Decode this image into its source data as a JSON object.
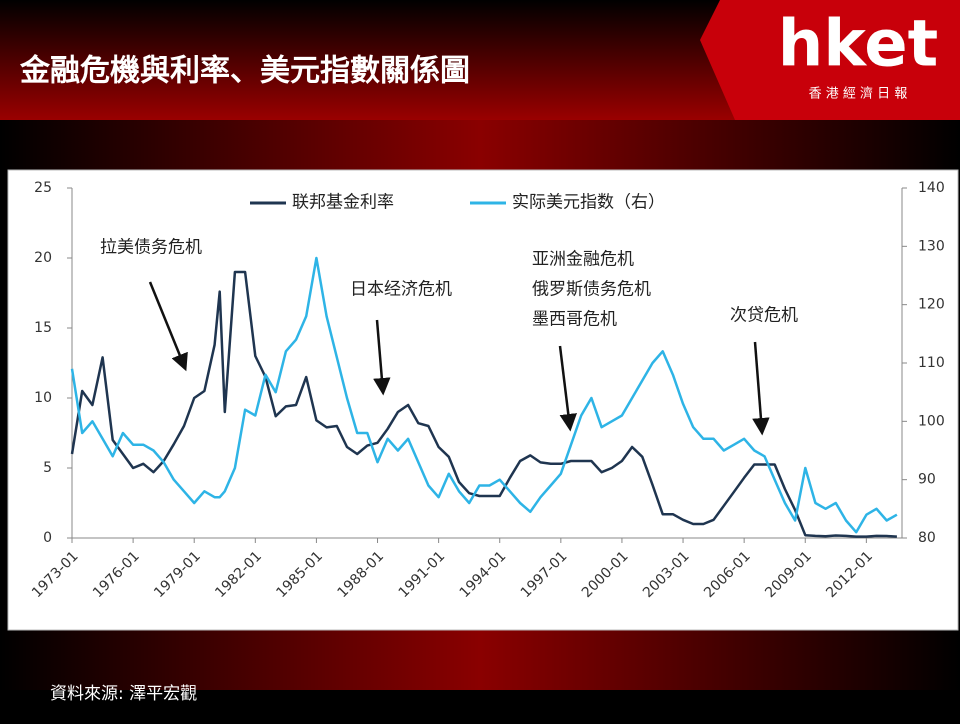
{
  "slide": {
    "title": "金融危機與利率、美元指數關係圖",
    "logo": "hket",
    "logo_sub": "香 港 經 濟 日 報",
    "source": "資料來源: 澤平宏觀"
  },
  "chart_data": {
    "type": "line",
    "annotations": [
      "拉美债务危机",
      "日本经济危机",
      "亚洲金融危机",
      "俄罗斯债务危机",
      "墨西哥危机",
      "次贷危机"
    ],
    "x": [
      "1973-01",
      "1973-07",
      "1974-01",
      "1974-07",
      "1975-01",
      "1975-07",
      "1976-01",
      "1976-07",
      "1977-01",
      "1977-07",
      "1978-01",
      "1978-07",
      "1979-01",
      "1979-07",
      "1980-01",
      "1980-04",
      "1980-07",
      "1981-01",
      "1981-07",
      "1982-01",
      "1982-07",
      "1983-01",
      "1983-07",
      "1984-01",
      "1984-07",
      "1985-01",
      "1985-07",
      "1986-01",
      "1986-07",
      "1987-01",
      "1987-07",
      "1988-01",
      "1988-07",
      "1989-01",
      "1989-07",
      "1990-01",
      "1990-07",
      "1991-01",
      "1991-07",
      "1992-01",
      "1992-07",
      "1993-01",
      "1993-07",
      "1994-01",
      "1994-07",
      "1995-01",
      "1995-07",
      "1996-01",
      "1996-07",
      "1997-01",
      "1997-07",
      "1998-01",
      "1998-07",
      "1999-01",
      "1999-07",
      "2000-01",
      "2000-07",
      "2001-01",
      "2001-07",
      "2002-01",
      "2002-07",
      "2003-01",
      "2003-07",
      "2004-01",
      "2004-07",
      "2005-01",
      "2005-07",
      "2006-01",
      "2006-07",
      "2007-01",
      "2007-07",
      "2008-01",
      "2008-07",
      "2009-01",
      "2009-07",
      "2010-01",
      "2010-07",
      "2011-01",
      "2011-07",
      "2012-01",
      "2012-07",
      "2013-01",
      "2013-07"
    ],
    "series": [
      {
        "name": "联邦基金利率",
        "color": "#1f3550",
        "values": [
          6,
          10.5,
          9.5,
          12.9,
          7,
          6,
          5,
          5.3,
          4.7,
          5.5,
          6.7,
          8,
          10,
          10.5,
          13.8,
          17.6,
          9,
          19,
          19,
          13,
          11.5,
          8.7,
          9.4,
          9.5,
          11.5,
          8.4,
          7.9,
          8,
          6.5,
          6,
          6.6,
          6.8,
          7.8,
          9,
          9.5,
          8.2,
          8,
          6.5,
          5.8,
          4,
          3.2,
          3,
          3,
          3,
          4.3,
          5.5,
          5.9,
          5.4,
          5.3,
          5.3,
          5.5,
          5.5,
          5.5,
          4.7,
          5,
          5.5,
          6.5,
          5.8,
          3.8,
          1.7,
          1.7,
          1.3,
          1,
          1,
          1.3,
          2.3,
          3.3,
          4.3,
          5.25,
          5.25,
          5.25,
          3.5,
          2,
          0.2,
          0.15,
          0.12,
          0.18,
          0.15,
          0.1,
          0.1,
          0.15,
          0.14,
          0.1
        ]
      },
      {
        "name": "实际美元指数（右）",
        "color": "#2eb4e6",
        "axis": "y2",
        "values": [
          109,
          98,
          100,
          97,
          94,
          98,
          96,
          96,
          95,
          93,
          90,
          88,
          86,
          88,
          87,
          87,
          88,
          92,
          102,
          101,
          108,
          105,
          112,
          114,
          118,
          128,
          118,
          111,
          104,
          98,
          98,
          93,
          97,
          95,
          97,
          93,
          89,
          87,
          91,
          88,
          86,
          89,
          89,
          90,
          88,
          86,
          84.5,
          87,
          89,
          91,
          96,
          101,
          104,
          99,
          100,
          101,
          104,
          107,
          110,
          112,
          108,
          103,
          99,
          97,
          97,
          95,
          96,
          97,
          95,
          94,
          90,
          86,
          83,
          92,
          86,
          85,
          86,
          83,
          81,
          84,
          85,
          83,
          84
        ]
      }
    ],
    "xlim": [
      "1973-01",
      "2013-10"
    ],
    "xticks": [
      "1973-01",
      "1976-01",
      "1979-01",
      "1982-01",
      "1985-01",
      "1988-01",
      "1991-01",
      "1994-01",
      "1997-01",
      "2000-01",
      "2003-01",
      "2006-01",
      "2009-01",
      "2012-01"
    ],
    "ylim": [
      0,
      25
    ],
    "yticks": [
      0,
      5,
      10,
      15,
      20,
      25
    ],
    "y2lim": [
      80,
      140
    ],
    "y2ticks": [
      80,
      90,
      100,
      110,
      120,
      130,
      140
    ],
    "legend": "top"
  }
}
